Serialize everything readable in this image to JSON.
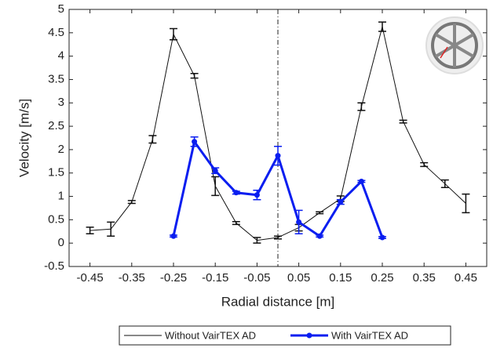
{
  "chart_data": {
    "type": "line",
    "xlabel": "Radial distance [m]",
    "ylabel": "Velocity [m/s]",
    "xlim": [
      -0.5,
      0.5
    ],
    "ylim": [
      -0.5,
      5
    ],
    "xticks": [
      -0.45,
      -0.35,
      -0.25,
      -0.15,
      -0.05,
      0.05,
      0.15,
      0.25,
      0.35,
      0.45
    ],
    "yticks": [
      -0.5,
      0,
      0.5,
      1,
      1.5,
      2,
      2.5,
      3,
      3.5,
      4,
      4.5,
      5
    ],
    "vline": 0,
    "series": [
      {
        "name": "Without VairTEX AD",
        "color": "#111111",
        "x": [
          -0.45,
          -0.4,
          -0.35,
          -0.3,
          -0.25,
          -0.2,
          -0.15,
          -0.1,
          -0.05,
          0,
          0.05,
          0.1,
          0.15,
          0.2,
          0.25,
          0.3,
          0.35,
          0.4,
          0.45
        ],
        "values": [
          0.27,
          0.3,
          0.88,
          2.22,
          4.47,
          3.58,
          1.22,
          0.43,
          0.06,
          0.12,
          0.33,
          0.65,
          0.95,
          2.92,
          4.63,
          2.6,
          1.68,
          1.27,
          0.85
        ],
        "errors": [
          0.07,
          0.15,
          0.03,
          0.08,
          0.12,
          0.05,
          0.2,
          0.03,
          0.06,
          0.03,
          0.07,
          0.02,
          0.06,
          0.08,
          0.1,
          0.03,
          0.04,
          0.08,
          0.2
        ]
      },
      {
        "name": "With VairTEX AD",
        "color": "#0a1ef0",
        "x": [
          -0.25,
          -0.2,
          -0.15,
          -0.1,
          -0.05,
          0,
          0.05,
          0.1,
          0.15,
          0.2,
          0.25
        ],
        "values": [
          0.15,
          2.17,
          1.55,
          1.08,
          1.03,
          1.87,
          0.45,
          0.15,
          0.88,
          1.32,
          0.12
        ],
        "errors": [
          0.02,
          0.1,
          0.06,
          0.03,
          0.1,
          0.2,
          0.25,
          0.02,
          0.05,
          0.02,
          0.02
        ]
      }
    ]
  }
}
